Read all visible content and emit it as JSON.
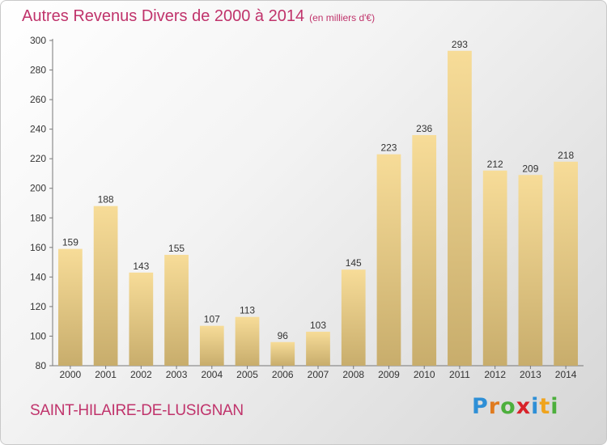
{
  "header": {
    "title": "Autres Revenus Divers de 2000 à 2014",
    "subtitle": "(en milliers d'€)"
  },
  "footer": {
    "town": "SAINT-HILAIRE-DE-LUSIGNAN",
    "brand_letters": [
      "P",
      "r",
      "o",
      "x",
      "i",
      "t",
      "i"
    ],
    "brand_colors": [
      "#2e8fd6",
      "#e07b1f",
      "#4caf3c",
      "#d8232a",
      "#2e8fd6",
      "#f0a41d",
      "#4caf3c"
    ]
  },
  "chart_data": {
    "type": "bar",
    "categories": [
      "2000",
      "2001",
      "2002",
      "2003",
      "2004",
      "2005",
      "2006",
      "2007",
      "2008",
      "2009",
      "2010",
      "2011",
      "2012",
      "2013",
      "2014"
    ],
    "values": [
      159,
      188,
      143,
      155,
      107,
      113,
      96,
      103,
      145,
      223,
      236,
      293,
      212,
      209,
      218
    ],
    "ylim": [
      80,
      300
    ],
    "yticks": [
      80,
      100,
      120,
      140,
      160,
      180,
      200,
      220,
      240,
      260,
      280,
      300
    ],
    "grid": false,
    "data_labels": true,
    "bar_color_top": "#f7dc98",
    "bar_color_bottom": "#c8ad6c",
    "text_color": "#333333",
    "accent_color": "#c0336b"
  }
}
